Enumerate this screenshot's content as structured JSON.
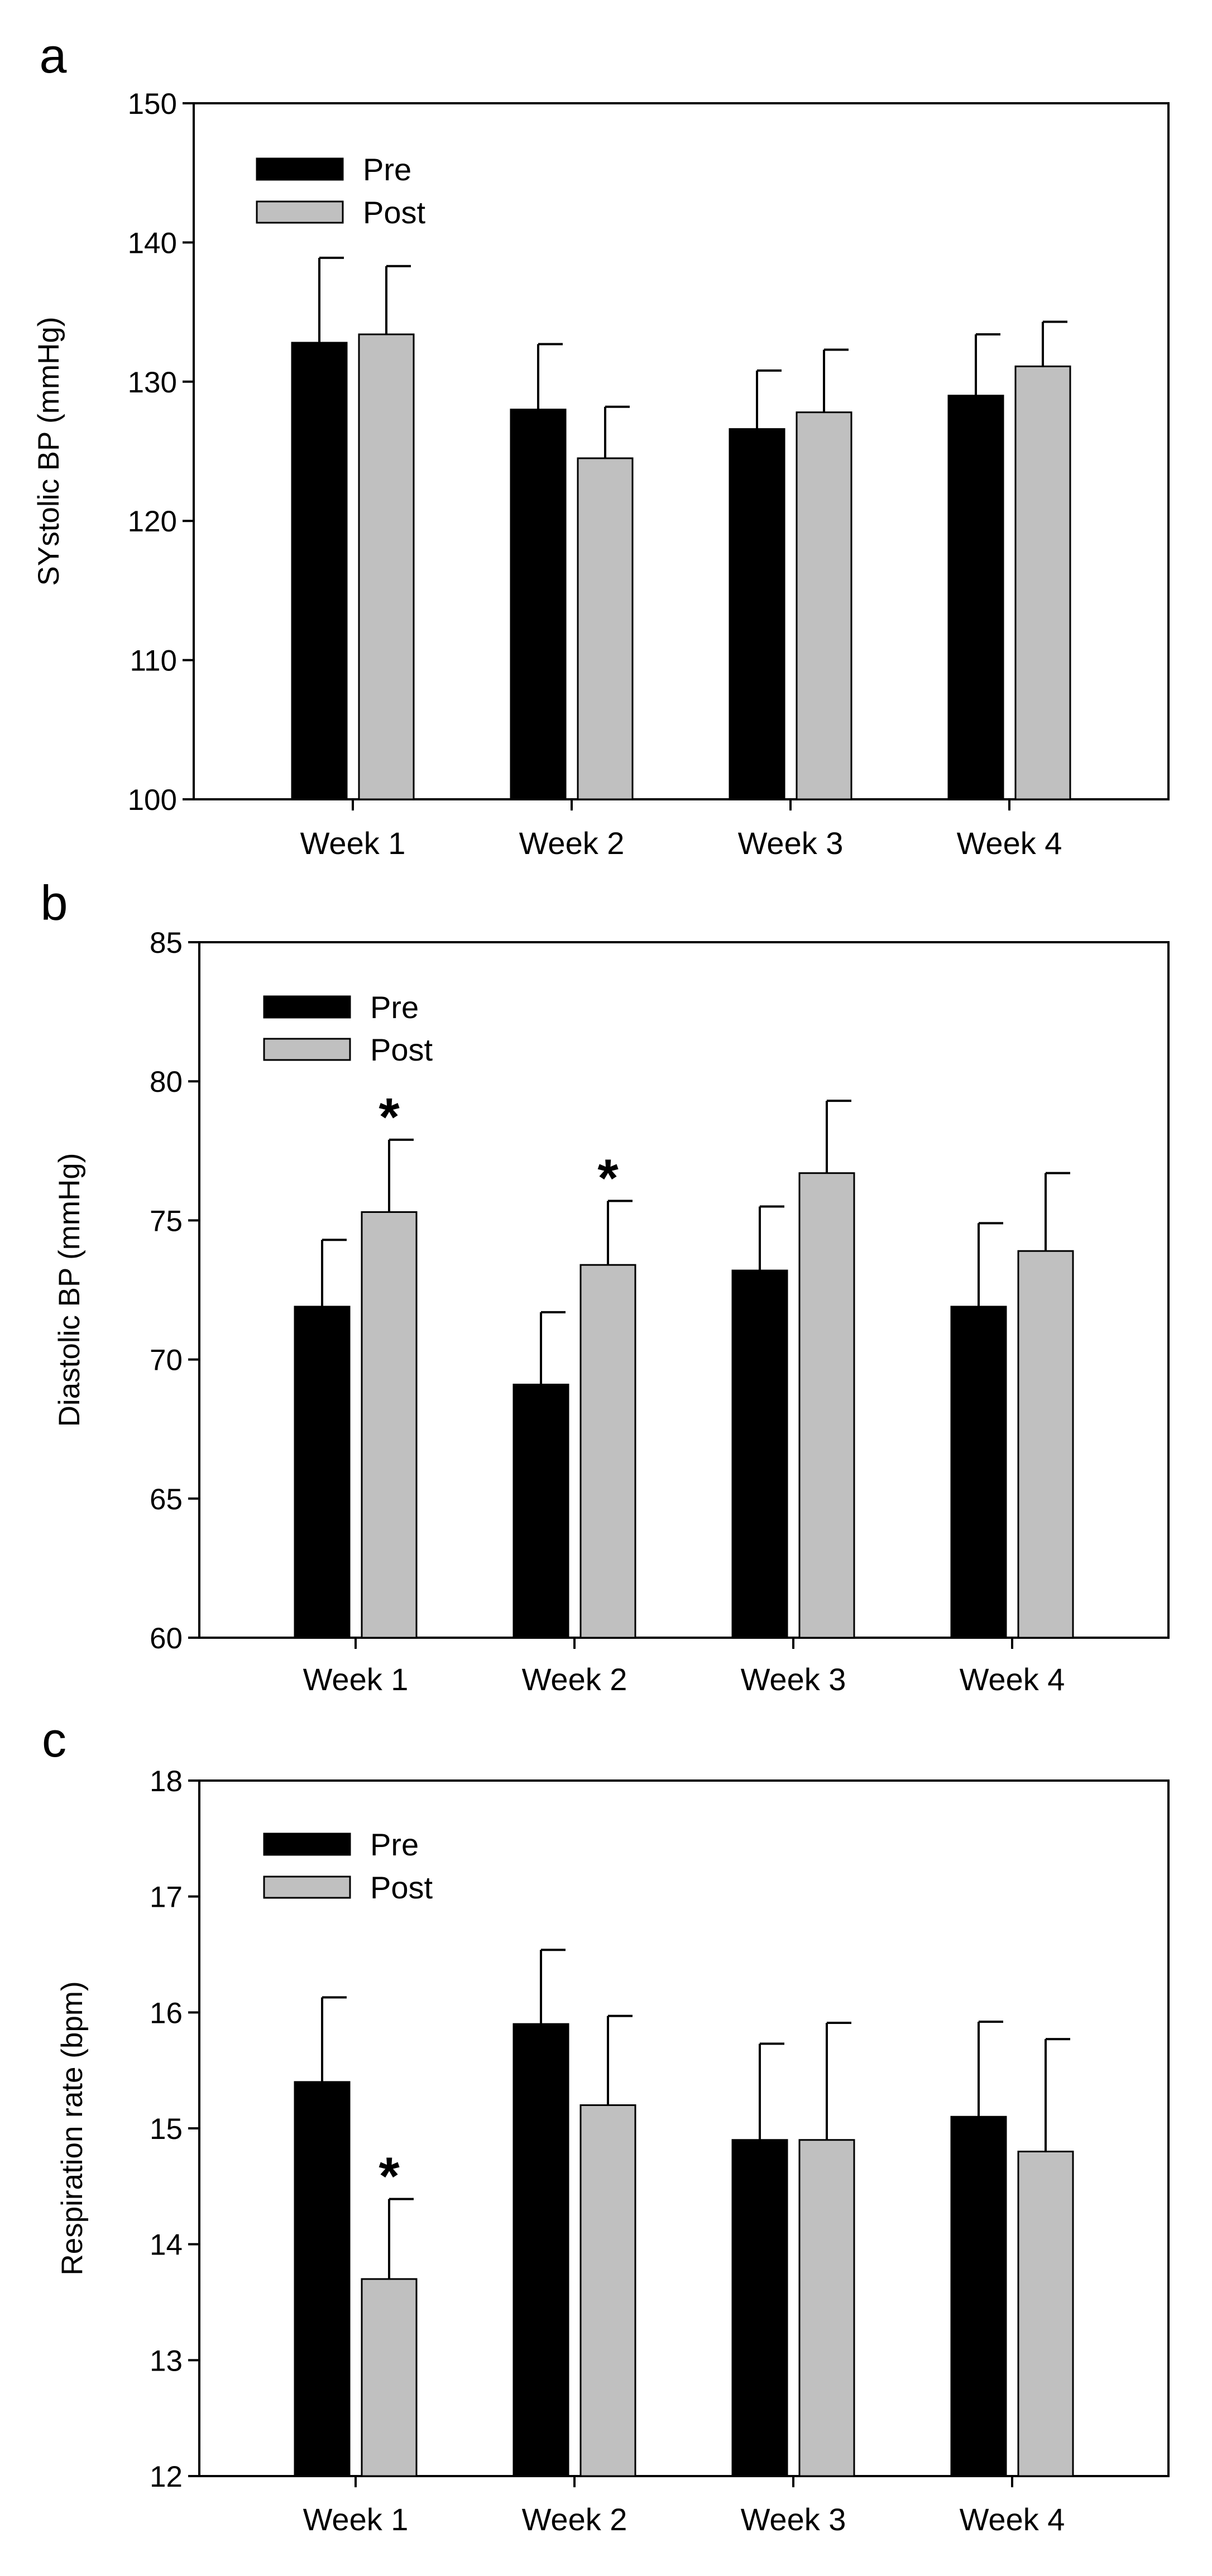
{
  "chart_data": [
    {
      "type": "bar",
      "panel_label": "a",
      "title": "",
      "xlabel": "",
      "ylabel": "SYstolic BP (mmHg)",
      "ylim": [
        100,
        150
      ],
      "yticks": [
        100,
        110,
        120,
        130,
        140,
        150
      ],
      "yticks_text": [
        "100",
        "110",
        "120",
        "130",
        "140",
        "150"
      ],
      "categories": [
        "Week 1",
        "Week 2",
        "Week 3",
        "Week 4"
      ],
      "series": [
        {
          "name": "Pre",
          "color": "#000000",
          "values": [
            132.8,
            128.0,
            126.6,
            129.0
          ],
          "errors": [
            6.1,
            4.7,
            4.2,
            4.4
          ]
        },
        {
          "name": "Post",
          "color": "#c0c0c0",
          "values": [
            133.4,
            124.5,
            127.8,
            131.1
          ],
          "errors": [
            4.9,
            3.7,
            4.5,
            3.2
          ]
        }
      ],
      "annotations": [],
      "legend": "top-left",
      "grid": false
    },
    {
      "type": "bar",
      "panel_label": "b",
      "title": "",
      "xlabel": "",
      "ylabel": "Diastolic BP (mmHg)",
      "ylim": [
        60,
        85
      ],
      "yticks": [
        60,
        65,
        70,
        75,
        80,
        85
      ],
      "yticks_text": [
        "60",
        "65",
        "70",
        "75",
        "80",
        "85"
      ],
      "categories": [
        "Week 1",
        "Week 2",
        "Week 3",
        "Week 4"
      ],
      "series": [
        {
          "name": "Pre",
          "color": "#000000",
          "values": [
            71.9,
            69.1,
            73.2,
            71.9
          ],
          "errors": [
            2.4,
            2.6,
            2.3,
            3.0
          ]
        },
        {
          "name": "Post",
          "color": "#c0c0c0",
          "values": [
            75.3,
            73.4,
            76.7,
            73.9
          ],
          "errors": [
            2.6,
            2.3,
            2.6,
            2.8
          ]
        }
      ],
      "annotations": [
        {
          "text": "*",
          "category": "Week 1",
          "series": "Post"
        },
        {
          "text": "*",
          "category": "Week 2",
          "series": "Post"
        }
      ],
      "legend": "top-left",
      "grid": false
    },
    {
      "type": "bar",
      "panel_label": "c",
      "title": "",
      "xlabel": "",
      "ylabel": "Respiration rate (bpm)",
      "ylim": [
        12,
        18
      ],
      "yticks": [
        12,
        13,
        14,
        15,
        16,
        17,
        18
      ],
      "yticks_text": [
        "12",
        "13",
        "14",
        "15",
        "16",
        "17",
        "18"
      ],
      "categories": [
        "Week 1",
        "Week 2",
        "Week 3",
        "Week 4"
      ],
      "series": [
        {
          "name": "Pre",
          "color": "#000000",
          "values": [
            15.4,
            15.9,
            14.9,
            15.1
          ],
          "errors": [
            0.73,
            0.64,
            0.83,
            0.82
          ]
        },
        {
          "name": "Post",
          "color": "#c0c0c0",
          "values": [
            13.7,
            15.2,
            14.9,
            14.8
          ],
          "errors": [
            0.69,
            0.77,
            1.01,
            0.97
          ]
        }
      ],
      "annotations": [
        {
          "text": "*",
          "category": "Week 1",
          "series": "Post"
        }
      ],
      "legend": "top-left",
      "grid": false
    }
  ]
}
